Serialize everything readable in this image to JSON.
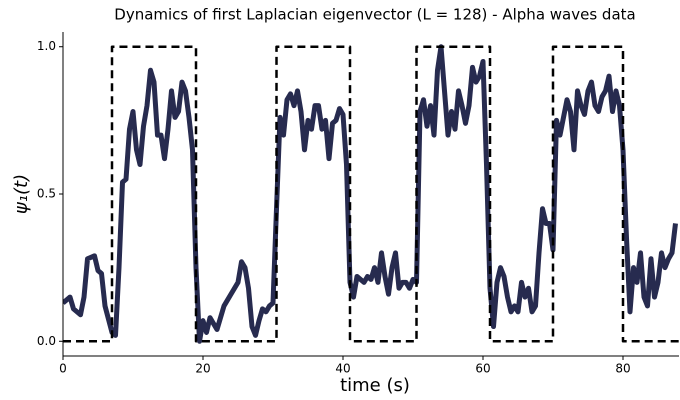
{
  "chart_data": {
    "type": "line",
    "title": "Dynamics of first Laplacian eigenvector (L = 128) - Alpha waves data",
    "xlabel": "time (s)",
    "ylabel": "ψ₁(t)",
    "xlim": [
      0,
      88
    ],
    "ylim": [
      -0.05,
      1.05
    ],
    "xticks": [
      0,
      20,
      40,
      60,
      80
    ],
    "yticks": [
      {
        "value": 0,
        "label": "0.0"
      },
      {
        "value": 0.5,
        "label": "0.5"
      },
      {
        "value": 1,
        "label": "1.0"
      }
    ],
    "series": [
      {
        "color": "#272b4f",
        "style": "solid",
        "x": [
          0,
          1,
          1.5,
          2.5,
          3,
          3.5,
          4.5,
          5,
          5.5,
          6,
          7,
          7.5,
          8,
          8.5,
          9,
          9.5,
          10,
          10.5,
          11,
          11.5,
          12,
          12.5,
          13,
          13.5,
          14,
          14.5,
          15,
          15.5,
          16,
          16.5,
          17,
          17.5,
          18,
          18.5,
          19,
          19.5,
          20,
          20.5,
          21,
          22,
          23,
          24,
          25,
          25.5,
          26,
          26.5,
          27,
          27.5,
          28,
          28.5,
          29,
          29.5,
          30,
          30.5,
          31,
          31.5,
          32,
          32.5,
          33,
          33.5,
          34,
          34.5,
          35,
          35.5,
          36,
          36.5,
          37,
          37.5,
          38,
          38.5,
          39,
          39.5,
          40,
          40.5,
          41,
          41.5,
          42,
          43,
          43.5,
          44,
          44.5,
          45,
          45.5,
          46,
          46.5,
          47,
          47.5,
          48,
          48.5,
          49,
          49.5,
          50,
          50.5,
          51,
          51.5,
          52,
          52.5,
          53,
          53.5,
          54,
          54.5,
          55,
          55.5,
          56,
          56.5,
          57,
          57.5,
          58,
          58.5,
          59,
          59.5,
          60,
          60.5,
          61,
          61.5,
          62,
          62.5,
          63,
          63.5,
          64,
          64.5,
          65,
          65.5,
          66,
          66.5,
          67,
          67.5,
          68,
          68.5,
          69,
          69.5,
          70,
          70.5,
          71,
          71.5,
          72,
          72.5,
          73,
          73.5,
          74,
          74.5,
          75,
          75.5,
          76,
          76.5,
          77,
          77.5,
          78,
          78.5,
          79,
          79.5,
          80,
          80.5,
          81,
          81.5,
          82,
          82.5,
          83,
          83.5,
          84,
          84.5,
          85,
          85.5,
          86,
          86.5,
          87,
          87.5
        ],
        "values": [
          0.13,
          0.15,
          0.11,
          0.09,
          0.15,
          0.28,
          0.29,
          0.24,
          0.23,
          0.12,
          0.03,
          0.02,
          0.25,
          0.54,
          0.55,
          0.72,
          0.78,
          0.65,
          0.6,
          0.73,
          0.8,
          0.92,
          0.88,
          0.7,
          0.7,
          0.62,
          0.72,
          0.85,
          0.76,
          0.78,
          0.88,
          0.85,
          0.76,
          0.65,
          0.25,
          0,
          0.07,
          0.03,
          0.08,
          0.04,
          0.12,
          0.16,
          0.2,
          0.27,
          0.25,
          0.18,
          0.05,
          0.02,
          0.07,
          0.11,
          0.1,
          0.12,
          0.13,
          0.45,
          0.76,
          0.7,
          0.82,
          0.84,
          0.8,
          0.85,
          0.78,
          0.65,
          0.75,
          0.72,
          0.8,
          0.8,
          0.72,
          0.75,
          0.62,
          0.74,
          0.75,
          0.79,
          0.77,
          0.6,
          0.2,
          0.15,
          0.22,
          0.2,
          0.22,
          0.21,
          0.25,
          0.2,
          0.3,
          0.22,
          0.16,
          0.25,
          0.3,
          0.18,
          0.2,
          0.2,
          0.18,
          0.21,
          0.2,
          0.78,
          0.82,
          0.73,
          0.8,
          0.7,
          0.92,
          1,
          0.85,
          0.7,
          0.78,
          0.72,
          0.85,
          0.8,
          0.74,
          0.8,
          0.93,
          0.88,
          0.9,
          0.95,
          0.6,
          0.18,
          0.05,
          0.2,
          0.25,
          0.22,
          0.15,
          0.1,
          0.12,
          0.1,
          0.2,
          0.15,
          0.18,
          0.1,
          0.12,
          0.3,
          0.45,
          0.4,
          0.4,
          0.31,
          0.75,
          0.7,
          0.76,
          0.82,
          0.78,
          0.65,
          0.85,
          0.8,
          0.77,
          0.85,
          0.88,
          0.8,
          0.78,
          0.83,
          0.85,
          0.9,
          0.78,
          0.85,
          0.8,
          0.65,
          0.35,
          0.1,
          0.25,
          0.2,
          0.3,
          0.15,
          0.12,
          0.28,
          0.15,
          0.2,
          0.3,
          0.25,
          0.28,
          0.3,
          0.4
        ]
      },
      {
        "color": "#000000",
        "style": "dashed",
        "x": [
          0,
          7,
          7,
          19,
          19,
          30.5,
          30.5,
          41,
          41,
          50.5,
          50.5,
          61,
          61,
          70,
          70,
          80,
          80,
          88
        ],
        "values": [
          0,
          0,
          1,
          1,
          0,
          0,
          1,
          1,
          0,
          0,
          1,
          1,
          0,
          0,
          1,
          1,
          0,
          0
        ]
      }
    ]
  }
}
